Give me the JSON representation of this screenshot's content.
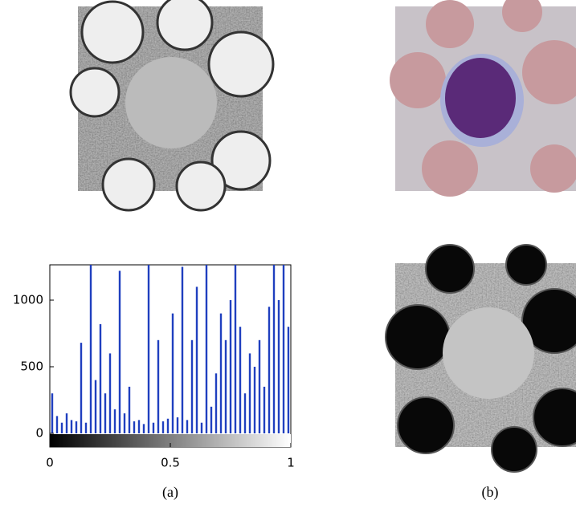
{
  "chart_data": {
    "type": "histogram",
    "color": "#1f3fbf",
    "bins": [
      0,
      0.02,
      0.04,
      0.06,
      0.08,
      0.1,
      0.12,
      0.14,
      0.16,
      0.18,
      0.2,
      0.22,
      0.24,
      0.26,
      0.28,
      0.3,
      0.32,
      0.34,
      0.36,
      0.38,
      0.4,
      0.42,
      0.44,
      0.46,
      0.48,
      0.5,
      0.52,
      0.54,
      0.56,
      0.58,
      0.6,
      0.62,
      0.64,
      0.66,
      0.68,
      0.7,
      0.72,
      0.74,
      0.76,
      0.78,
      0.8,
      0.82,
      0.84,
      0.86,
      0.88,
      0.9,
      0.92,
      0.94,
      0.96,
      0.98,
      1
    ],
    "values": [
      300,
      130,
      80,
      150,
      100,
      90,
      680,
      80,
      1265,
      400,
      820,
      300,
      600,
      180,
      1220,
      150,
      350,
      90,
      100,
      70,
      1265,
      80,
      700,
      90,
      110,
      900,
      120,
      1250,
      100,
      700,
      1100,
      80,
      1265,
      200,
      450,
      900,
      700,
      1000,
      1265,
      800,
      300,
      600,
      500,
      700,
      350,
      950,
      1265,
      1000,
      1265,
      800
    ],
    "xlim": [
      0,
      1
    ],
    "xticks": [
      0,
      0.5,
      1
    ],
    "ylim": [
      0,
      1265
    ],
    "yticks": [
      0,
      500,
      1000
    ]
  },
  "captions": [
    "(a)",
    "(b)"
  ]
}
